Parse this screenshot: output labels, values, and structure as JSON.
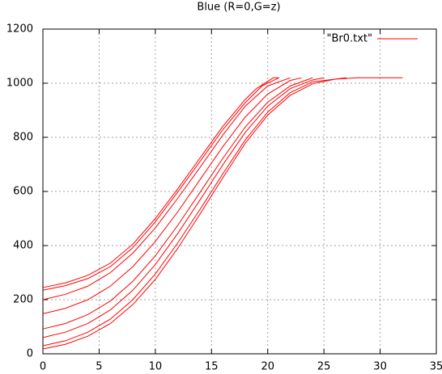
{
  "chart_data": {
    "type": "line",
    "title": "Blue (R=0,G=z)",
    "x": [
      0,
      2,
      4,
      6,
      8,
      10,
      12,
      14,
      16,
      18,
      19,
      20.5,
      21,
      null,
      0,
      2,
      4,
      6,
      8,
      10,
      12,
      14,
      16,
      18,
      19.5,
      21,
      null,
      0,
      2,
      4,
      6,
      8,
      10,
      12,
      14,
      16,
      18,
      20,
      22,
      null,
      0,
      2,
      4,
      6,
      8,
      10,
      12,
      14,
      16,
      18,
      20,
      22,
      23,
      null,
      0,
      2,
      4,
      6,
      8,
      10,
      12,
      14,
      16,
      18,
      20,
      22,
      24,
      null,
      0,
      2,
      4,
      6,
      8,
      10,
      12,
      14,
      16,
      18,
      20,
      22,
      24,
      25,
      null,
      0,
      2,
      4,
      6,
      8,
      10,
      12,
      14,
      16,
      18,
      20,
      22,
      24,
      27,
      null,
      0,
      2,
      4,
      6,
      8,
      10,
      12,
      14,
      16,
      18,
      20,
      22,
      24,
      26,
      28,
      32
    ],
    "series": [
      {
        "name": "\"Br0.txt\"",
        "color": "#ff0000",
        "values": [
          245,
          262,
          290,
          335,
          405,
          500,
          610,
          725,
          840,
          940,
          980,
          1020,
          1020,
          null,
          235,
          252,
          278,
          322,
          392,
          488,
          598,
          712,
          828,
          928,
          990,
          1020,
          null,
          200,
          220,
          250,
          300,
          372,
          465,
          575,
          690,
          808,
          915,
          990,
          1020,
          null,
          148,
          168,
          200,
          250,
          322,
          415,
          525,
          645,
          765,
          875,
          960,
          1010,
          1020,
          null,
          92,
          112,
          145,
          195,
          268,
          362,
          475,
          598,
          722,
          838,
          930,
          990,
          1020,
          null,
          60,
          80,
          112,
          162,
          235,
          330,
          445,
          570,
          698,
          818,
          915,
          980,
          1012,
          1020,
          null,
          30,
          48,
          80,
          128,
          200,
          295,
          410,
          535,
          665,
          790,
          893,
          965,
          1005,
          1020,
          null,
          18,
          35,
          65,
          112,
          182,
          275,
          390,
          518,
          650,
          778,
          882,
          955,
          998,
          1015,
          1020,
          1020
        ]
      }
    ],
    "xlim": [
      0,
      35
    ],
    "xticks": [
      0,
      5,
      10,
      15,
      20,
      25,
      30,
      35
    ],
    "ylim": [
      0,
      1200
    ],
    "yticks": [
      0,
      200,
      400,
      600,
      800,
      1000,
      1200
    ],
    "grid": true,
    "legend": "top-right"
  }
}
